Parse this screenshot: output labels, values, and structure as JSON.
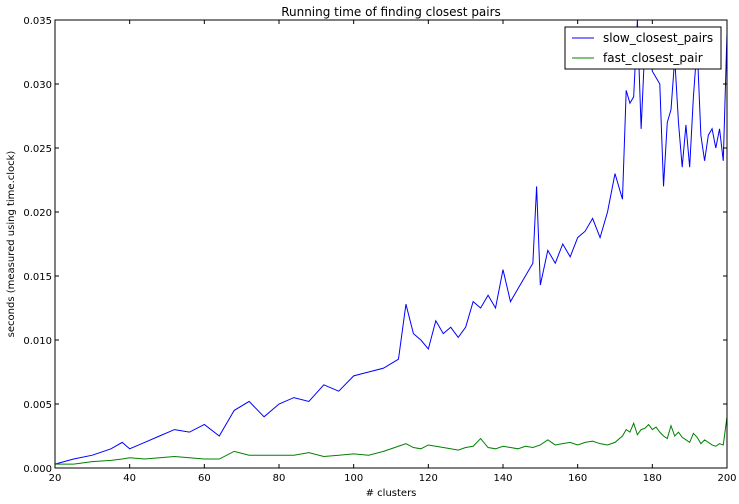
{
  "chart_data": {
    "type": "line",
    "title": "Running time of finding closest pairs",
    "xlabel": "# clusters",
    "ylabel": "seconds (measured using time.clock)",
    "xlim": [
      20,
      200
    ],
    "ylim": [
      0,
      0.035
    ],
    "xticks": [
      "20",
      "40",
      "60",
      "80",
      "100",
      "120",
      "140",
      "160",
      "180",
      "200"
    ],
    "yticks": [
      "0.000",
      "0.005",
      "0.010",
      "0.015",
      "0.020",
      "0.025",
      "0.030",
      "0.035"
    ],
    "grid": false,
    "legend_position": "top-right",
    "series": [
      {
        "name": "slow_closest_pairs",
        "color": "#0000ff",
        "x": [
          20,
          25,
          30,
          35,
          38,
          40,
          44,
          48,
          52,
          56,
          60,
          64,
          68,
          72,
          76,
          80,
          84,
          88,
          92,
          96,
          100,
          104,
          108,
          112,
          114,
          116,
          118,
          120,
          122,
          124,
          126,
          128,
          130,
          132,
          134,
          136,
          138,
          140,
          142,
          144,
          146,
          148,
          149,
          150,
          152,
          154,
          156,
          158,
          160,
          162,
          164,
          166,
          168,
          170,
          172,
          173,
          174,
          175,
          176,
          177,
          178,
          179,
          180,
          181,
          182,
          183,
          184,
          185,
          186,
          187,
          188,
          189,
          190,
          191,
          192,
          193,
          194,
          195,
          196,
          197,
          198,
          199,
          200
        ],
        "values": [
          0.0003,
          0.0007,
          0.001,
          0.0015,
          0.002,
          0.0015,
          0.002,
          0.0025,
          0.003,
          0.0028,
          0.0034,
          0.0025,
          0.0045,
          0.0052,
          0.004,
          0.005,
          0.0055,
          0.0052,
          0.0065,
          0.006,
          0.0072,
          0.0075,
          0.0078,
          0.0085,
          0.0128,
          0.0105,
          0.01,
          0.0093,
          0.0115,
          0.0105,
          0.011,
          0.0102,
          0.011,
          0.013,
          0.0125,
          0.0135,
          0.0125,
          0.0155,
          0.013,
          0.014,
          0.015,
          0.016,
          0.022,
          0.0143,
          0.017,
          0.016,
          0.0175,
          0.0165,
          0.018,
          0.0185,
          0.0195,
          0.018,
          0.02,
          0.023,
          0.021,
          0.0295,
          0.0285,
          0.029,
          0.035,
          0.0265,
          0.033,
          0.034,
          0.031,
          0.0305,
          0.03,
          0.022,
          0.027,
          0.028,
          0.032,
          0.027,
          0.0235,
          0.0268,
          0.0235,
          0.029,
          0.033,
          0.026,
          0.024,
          0.026,
          0.0265,
          0.025,
          0.0265,
          0.024,
          0.034
        ]
      },
      {
        "name": "fast_closest_pair",
        "color": "#008000",
        "x": [
          20,
          25,
          30,
          35,
          38,
          40,
          44,
          48,
          52,
          56,
          60,
          64,
          68,
          72,
          76,
          80,
          84,
          88,
          92,
          96,
          100,
          104,
          108,
          112,
          114,
          116,
          118,
          120,
          122,
          124,
          126,
          128,
          130,
          132,
          134,
          136,
          138,
          140,
          142,
          144,
          146,
          148,
          150,
          152,
          154,
          156,
          158,
          160,
          162,
          164,
          166,
          168,
          170,
          172,
          173,
          174,
          175,
          176,
          177,
          178,
          179,
          180,
          181,
          182,
          183,
          184,
          185,
          186,
          187,
          188,
          189,
          190,
          191,
          192,
          193,
          194,
          195,
          196,
          197,
          198,
          199,
          200
        ],
        "values": [
          0.0003,
          0.0003,
          0.0005,
          0.0006,
          0.0007,
          0.0008,
          0.0007,
          0.0008,
          0.0009,
          0.0008,
          0.0007,
          0.0007,
          0.0013,
          0.001,
          0.001,
          0.001,
          0.001,
          0.0012,
          0.0009,
          0.001,
          0.0011,
          0.001,
          0.0013,
          0.0017,
          0.0019,
          0.0016,
          0.0015,
          0.0018,
          0.0017,
          0.0016,
          0.0015,
          0.0014,
          0.0016,
          0.0017,
          0.0023,
          0.0016,
          0.0015,
          0.0017,
          0.0016,
          0.0015,
          0.0017,
          0.0016,
          0.0018,
          0.0022,
          0.0018,
          0.0019,
          0.002,
          0.0018,
          0.002,
          0.0021,
          0.0019,
          0.0018,
          0.002,
          0.0025,
          0.003,
          0.0028,
          0.0035,
          0.0026,
          0.003,
          0.0031,
          0.0034,
          0.003,
          0.0032,
          0.0028,
          0.0025,
          0.0023,
          0.0033,
          0.0025,
          0.0028,
          0.0024,
          0.0022,
          0.002,
          0.0027,
          0.0024,
          0.0019,
          0.0022,
          0.002,
          0.0018,
          0.0017,
          0.0019,
          0.0018,
          0.004
        ]
      }
    ]
  }
}
